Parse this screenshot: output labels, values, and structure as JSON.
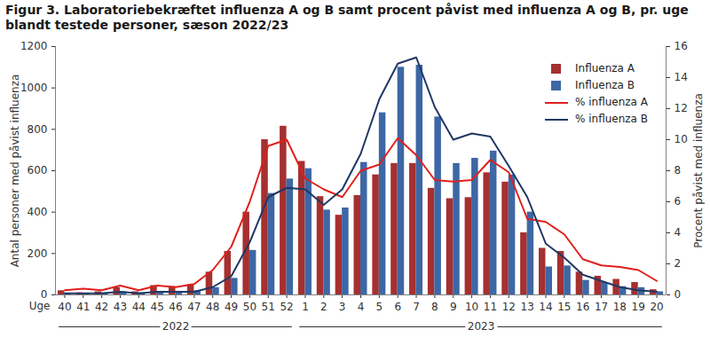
{
  "chart_data": {
    "type": "bar",
    "title": "Figur 3. Laboratoriebekræftet influenza A og B samt procent påvist med influenza A og B, pr. uge blandt testede personer, sæson 2022/23",
    "x_label": "Uge",
    "y_label": "Antal personer med påvist influenza",
    "y2_label": "Procent påvist med influenza",
    "categories": [
      "40",
      "41",
      "42",
      "43",
      "44",
      "45",
      "46",
      "47",
      "48",
      "49",
      "50",
      "51",
      "52",
      "1",
      "2",
      "3",
      "4",
      "5",
      "6",
      "7",
      "8",
      "9",
      "10",
      "11",
      "12",
      "13",
      "14",
      "15",
      "16",
      "17",
      "18",
      "19",
      "20"
    ],
    "series": [
      {
        "name": "Influenza A",
        "type": "bar",
        "color": "#a5302f",
        "values": [
          20,
          10,
          15,
          35,
          15,
          45,
          40,
          50,
          110,
          210,
          400,
          750,
          815,
          645,
          475,
          385,
          480,
          580,
          635,
          635,
          515,
          465,
          470,
          590,
          545,
          300,
          225,
          210,
          110,
          90,
          75,
          60,
          25
        ]
      },
      {
        "name": "Influenza B",
        "type": "bar",
        "color": "#3d67a5",
        "values": [
          5,
          5,
          10,
          15,
          10,
          15,
          15,
          20,
          35,
          80,
          215,
          490,
          560,
          610,
          410,
          420,
          640,
          880,
          1100,
          1110,
          860,
          635,
          660,
          695,
          580,
          400,
          135,
          140,
          70,
          60,
          40,
          35,
          15
        ]
      },
      {
        "name": "% influenza A",
        "type": "line",
        "axis": "y2",
        "color": "#e0201c",
        "values": [
          0.3,
          0.4,
          0.3,
          0.6,
          0.3,
          0.6,
          0.5,
          0.7,
          1.6,
          3.1,
          6,
          9.6,
          10,
          7.5,
          6.8,
          6.3,
          8,
          8.4,
          10.1,
          9,
          7.4,
          7.3,
          7.4,
          8.7,
          7.9,
          4.9,
          4.7,
          3.9,
          2.3,
          1.9,
          1.8,
          1.6,
          0.9
        ]
      },
      {
        "name": "% influenza B",
        "type": "line",
        "axis": "y2",
        "color": "#1f3864",
        "values": [
          0.1,
          0.1,
          0.1,
          0.2,
          0.1,
          0.2,
          0.2,
          0.2,
          0.5,
          1.2,
          3.4,
          6.3,
          6.9,
          6.8,
          5.8,
          6.8,
          9.1,
          12.6,
          14.9,
          15.3,
          12.1,
          10,
          10.4,
          10.2,
          8.3,
          6.3,
          3.3,
          2.4,
          1.3,
          0.9,
          0.5,
          0.3,
          0.2
        ]
      }
    ],
    "ylim": [
      0,
      1200
    ],
    "yticks": [
      0,
      200,
      400,
      600,
      800,
      1000,
      1200
    ],
    "y2lim": [
      0,
      16
    ],
    "y2ticks": [
      0,
      2,
      4,
      6,
      8,
      10,
      12,
      14,
      16
    ],
    "annotations": [
      {
        "text": "2022",
        "from": "40",
        "to": "52"
      },
      {
        "text": "2023",
        "from": "1",
        "to": "20"
      }
    ],
    "grid": false,
    "legend": "upper right"
  }
}
